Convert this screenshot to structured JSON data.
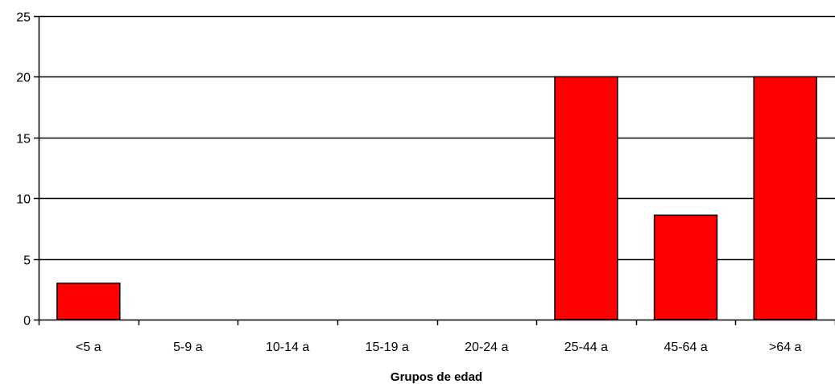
{
  "chart_data": {
    "type": "bar",
    "title": "",
    "xlabel": "Grupos de edad",
    "ylabel": "",
    "categories": [
      "<5 a",
      "5-9 a",
      "10-14 a",
      "15-19 a",
      "20-24 a",
      "25-44 a",
      "45-64 a",
      ">64 a"
    ],
    "values": [
      3,
      0,
      0,
      0,
      0,
      20,
      8.6,
      20
    ],
    "ylim": [
      0,
      25
    ],
    "yticks": [
      0,
      5,
      10,
      15,
      20,
      25
    ],
    "grid": true,
    "legend": "none",
    "colors": {
      "bar_fill": "#ff0000",
      "bar_stroke": "#000000",
      "gridline": "#000000",
      "axis": "#000000"
    }
  }
}
